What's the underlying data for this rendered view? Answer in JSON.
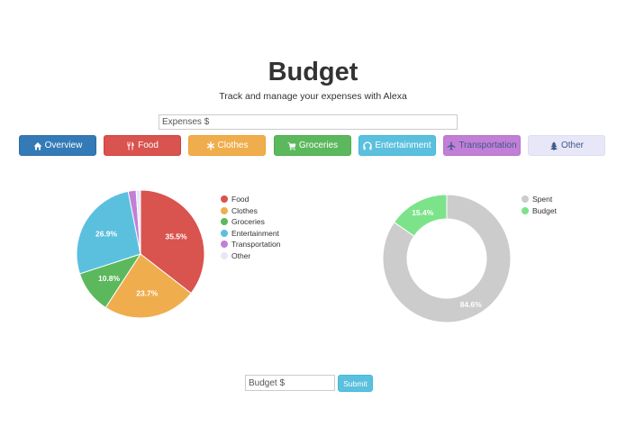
{
  "header": {
    "title": "Budget",
    "subtitle": "Track and manage your expenses with Alexa"
  },
  "expenses_input": {
    "placeholder": "Expenses $",
    "value": ""
  },
  "categories": [
    {
      "label": "Overview",
      "icon": "home-icon",
      "bg": "#337ab7",
      "border": "#2e6da4",
      "color": "#ffffff"
    },
    {
      "label": "Food",
      "icon": "cutlery-icon",
      "bg": "#d9534f",
      "border": "#d43f3a",
      "color": "#ffffff"
    },
    {
      "label": "Clothes",
      "icon": "asterisk-icon",
      "bg": "#f0ad4e",
      "border": "#eea236",
      "color": "#ffffff"
    },
    {
      "label": "Groceries",
      "icon": "shopping-cart-icon",
      "bg": "#5cb85c",
      "border": "#4cae4c",
      "color": "#ffffff"
    },
    {
      "label": "Entertainment",
      "icon": "headphones-icon",
      "bg": "#5bc0de",
      "border": "#46b8da",
      "color": "#ffffff"
    },
    {
      "label": "Transportation",
      "icon": "plane-icon",
      "bg": "#c27fd6",
      "border": "#b774cc",
      "color": "#3d5a8a"
    },
    {
      "label": "Other",
      "icon": "tree-icon",
      "bg": "#e8e7f8",
      "border": "#dddcf2",
      "color": "#3d5a8a"
    }
  ],
  "budget_input": {
    "placeholder": "Budget $",
    "value": ""
  },
  "submit_label": "Submit",
  "chart_data": [
    {
      "type": "pie",
      "title": "",
      "categories": [
        "Food",
        "Clothes",
        "Groceries",
        "Entertainment",
        "Transportation",
        "Other"
      ],
      "values": [
        35.5,
        23.7,
        10.8,
        26.9,
        2.0,
        1.1
      ],
      "labels": [
        "35.5%",
        "23.7%",
        "10.8%",
        "26.9%",
        "",
        ""
      ],
      "colors": [
        "#d9534f",
        "#f0ad4e",
        "#5cb85c",
        "#5bc0de",
        "#c27fd6",
        "#e8e7f8"
      ],
      "legend_position": "right"
    },
    {
      "type": "pie",
      "variant": "doughnut",
      "title": "",
      "categories": [
        "Spent",
        "Budget"
      ],
      "values": [
        84.6,
        15.4
      ],
      "labels": [
        "84.6%",
        "15.4%"
      ],
      "colors": [
        "#cccccc",
        "#7de38a"
      ],
      "legend_position": "right"
    }
  ]
}
